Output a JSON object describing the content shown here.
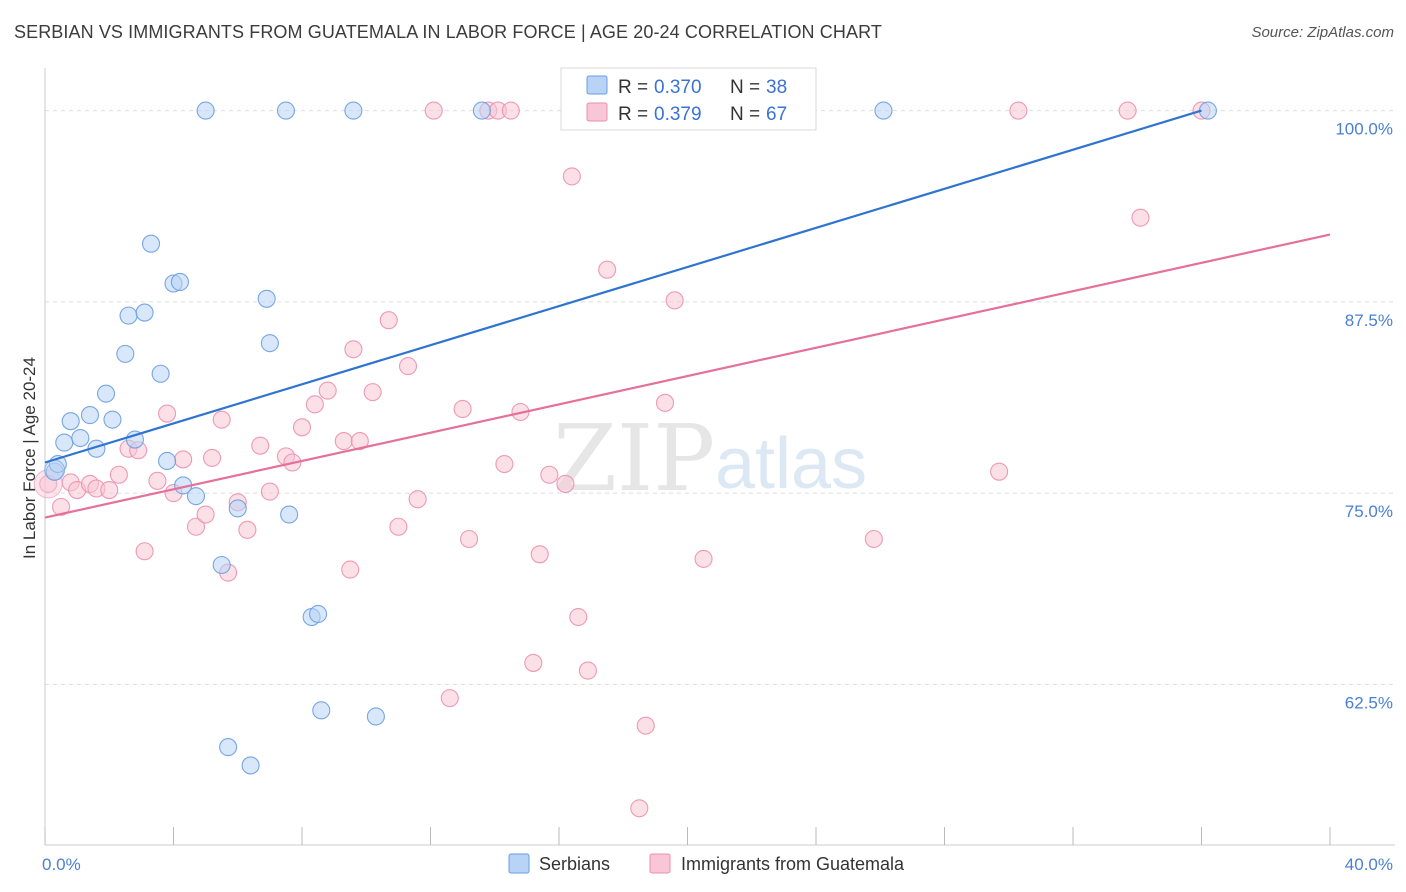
{
  "title": "SERBIAN VS IMMIGRANTS FROM GUATEMALA IN LABOR FORCE | AGE 20-24 CORRELATION CHART",
  "source": "Source: ZipAtlas.com",
  "watermark": {
    "zip": "ZIP",
    "atlas": "atlas"
  },
  "colors": {
    "serbians_fill": "#b8d3f5",
    "serbians_stroke": "#6a9de0",
    "serbians_line": "#2f74d0",
    "guatemala_fill": "#f8c6d6",
    "guatemala_stroke": "#ec8fae",
    "guatemala_line": "#e5709a",
    "tick_text": "#4a7fd4",
    "grid": "#dddddd"
  },
  "legend": {
    "rows": [
      {
        "r_label": "R = ",
        "r_value": "0.370",
        "n_label": "N = ",
        "n_value": "38"
      },
      {
        "r_label": "R = ",
        "r_value": "0.379",
        "n_label": "N = ",
        "n_value": "67"
      }
    ]
  },
  "bottom_legend": [
    "Serbians",
    "Immigrants from Guatemala"
  ],
  "chart_data": {
    "type": "scatter",
    "title": "SERBIAN VS IMMIGRANTS FROM GUATEMALA IN LABOR FORCE | AGE 20-24 CORRELATION CHART",
    "xlabel": "",
    "ylabel": "In Labor Force | Age 20-24",
    "xlim": [
      0,
      40
    ],
    "ylim": [
      52,
      102
    ],
    "x_tick_labels": [
      {
        "value": 0,
        "label": "0.0%"
      },
      {
        "value": 40,
        "label": "40.0%"
      }
    ],
    "y_tick_labels": [
      {
        "value": 100,
        "label": "100.0%"
      },
      {
        "value": 87.5,
        "label": "87.5%"
      },
      {
        "value": 75,
        "label": "75.0%"
      },
      {
        "value": 62.5,
        "label": "62.5%"
      }
    ],
    "x_minor_ticks": [
      0,
      4,
      8,
      12,
      16,
      20,
      24,
      28,
      32,
      36,
      40
    ],
    "grid": true,
    "legend_position": "top-center",
    "series": [
      {
        "name": "Serbians",
        "color": "#6a9de0",
        "points": [
          [
            0.3,
            76.4
          ],
          [
            0.4,
            76.9
          ],
          [
            0.6,
            78.3
          ],
          [
            0.8,
            79.7
          ],
          [
            1.1,
            78.6
          ],
          [
            1.4,
            80.1
          ],
          [
            1.6,
            77.9
          ],
          [
            1.9,
            81.5
          ],
          [
            2.1,
            79.8
          ],
          [
            2.5,
            84.1
          ],
          [
            2.6,
            86.6
          ],
          [
            2.8,
            78.5
          ],
          [
            3.1,
            86.8
          ],
          [
            3.3,
            91.3
          ],
          [
            3.6,
            82.8
          ],
          [
            3.8,
            77.1
          ],
          [
            4.0,
            88.7
          ],
          [
            4.2,
            88.8
          ],
          [
            4.3,
            75.5
          ],
          [
            4.7,
            74.8
          ],
          [
            5.0,
            100.0
          ],
          [
            5.5,
            70.3
          ],
          [
            5.7,
            58.4
          ],
          [
            6.0,
            74.0
          ],
          [
            6.4,
            57.2
          ],
          [
            6.9,
            87.7
          ],
          [
            7.0,
            84.8
          ],
          [
            7.5,
            100.0
          ],
          [
            7.6,
            73.6
          ],
          [
            8.3,
            66.9
          ],
          [
            8.5,
            67.1
          ],
          [
            8.6,
            60.8
          ],
          [
            9.6,
            100.0
          ],
          [
            10.3,
            60.4
          ],
          [
            13.6,
            100.0
          ],
          [
            16.5,
            100.0
          ],
          [
            26.1,
            100.0
          ],
          [
            36.2,
            100.0
          ]
        ]
      },
      {
        "name": "Immigrants from Guatemala",
        "color": "#ec8fae",
        "points": [
          [
            0.1,
            75.6
          ],
          [
            0.5,
            74.1
          ],
          [
            0.8,
            75.7
          ],
          [
            1.0,
            75.2
          ],
          [
            1.4,
            75.6
          ],
          [
            1.6,
            75.3
          ],
          [
            2.0,
            75.2
          ],
          [
            2.3,
            76.2
          ],
          [
            2.6,
            77.9
          ],
          [
            2.9,
            77.8
          ],
          [
            3.1,
            71.2
          ],
          [
            3.5,
            75.8
          ],
          [
            3.8,
            80.2
          ],
          [
            4.0,
            75.0
          ],
          [
            4.3,
            77.2
          ],
          [
            4.7,
            72.8
          ],
          [
            5.0,
            73.6
          ],
          [
            5.2,
            77.3
          ],
          [
            5.5,
            79.8
          ],
          [
            5.7,
            69.8
          ],
          [
            6.0,
            74.4
          ],
          [
            6.3,
            72.6
          ],
          [
            6.7,
            78.1
          ],
          [
            7.0,
            75.1
          ],
          [
            7.5,
            77.4
          ],
          [
            7.7,
            77.0
          ],
          [
            8.0,
            79.3
          ],
          [
            8.4,
            80.8
          ],
          [
            8.8,
            81.7
          ],
          [
            9.3,
            78.4
          ],
          [
            9.5,
            70.0
          ],
          [
            9.6,
            84.4
          ],
          [
            9.8,
            78.4
          ],
          [
            10.2,
            81.6
          ],
          [
            10.7,
            86.3
          ],
          [
            11.0,
            72.8
          ],
          [
            11.3,
            83.3
          ],
          [
            11.6,
            74.6
          ],
          [
            12.1,
            100.0
          ],
          [
            12.6,
            61.6
          ],
          [
            13.0,
            80.5
          ],
          [
            13.2,
            72.0
          ],
          [
            13.8,
            100.0
          ],
          [
            14.1,
            100.0
          ],
          [
            14.3,
            76.9
          ],
          [
            14.5,
            100.0
          ],
          [
            14.8,
            80.3
          ],
          [
            15.2,
            63.9
          ],
          [
            15.4,
            71.0
          ],
          [
            15.7,
            76.2
          ],
          [
            16.2,
            75.6
          ],
          [
            16.4,
            95.7
          ],
          [
            16.6,
            66.9
          ],
          [
            16.9,
            63.4
          ],
          [
            17.5,
            89.6
          ],
          [
            18.5,
            54.4
          ],
          [
            18.7,
            59.8
          ],
          [
            19.3,
            80.9
          ],
          [
            19.6,
            87.6
          ],
          [
            20.0,
            100.0
          ],
          [
            20.5,
            70.7
          ],
          [
            25.8,
            72.0
          ],
          [
            29.7,
            76.4
          ],
          [
            30.3,
            100.0
          ],
          [
            33.7,
            100.0
          ],
          [
            34.1,
            93.0
          ],
          [
            36.0,
            100.0
          ]
        ]
      }
    ],
    "trend_lines": [
      {
        "series": "Serbians",
        "from": [
          0,
          77.0
        ],
        "to": [
          36.0,
          100.0
        ]
      },
      {
        "series": "Immigrants from Guatemala",
        "from": [
          0,
          73.4
        ],
        "to": [
          40,
          91.9
        ]
      }
    ]
  }
}
